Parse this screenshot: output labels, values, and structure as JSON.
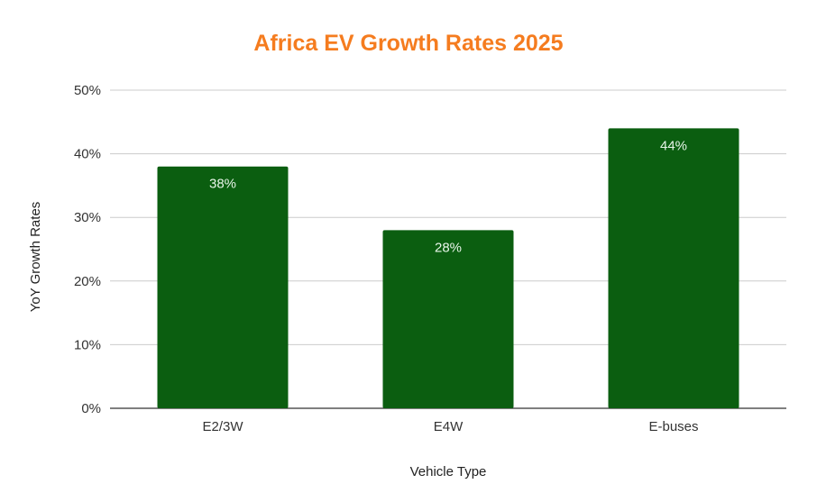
{
  "chart_data": {
    "type": "bar",
    "title": "Africa EV Growth Rates 2025",
    "xlabel": "Vehicle Type",
    "ylabel": "YoY Growth Rates",
    "categories": [
      "E2/3W",
      "E4W",
      "E-buses"
    ],
    "values": [
      38,
      28,
      44
    ],
    "data_labels": [
      "38%",
      "28%",
      "44%"
    ],
    "ylim": [
      0,
      50
    ],
    "y_ticks": [
      0,
      10,
      20,
      30,
      40,
      50
    ],
    "y_tick_labels": [
      "0%",
      "10%",
      "20%",
      "30%",
      "40%",
      "50%"
    ],
    "grid": true,
    "legend": "none",
    "colors": {
      "bar": "#0b5e10",
      "title": "#f57c1f",
      "grid": "#cccccc",
      "axis": "#333333"
    }
  }
}
